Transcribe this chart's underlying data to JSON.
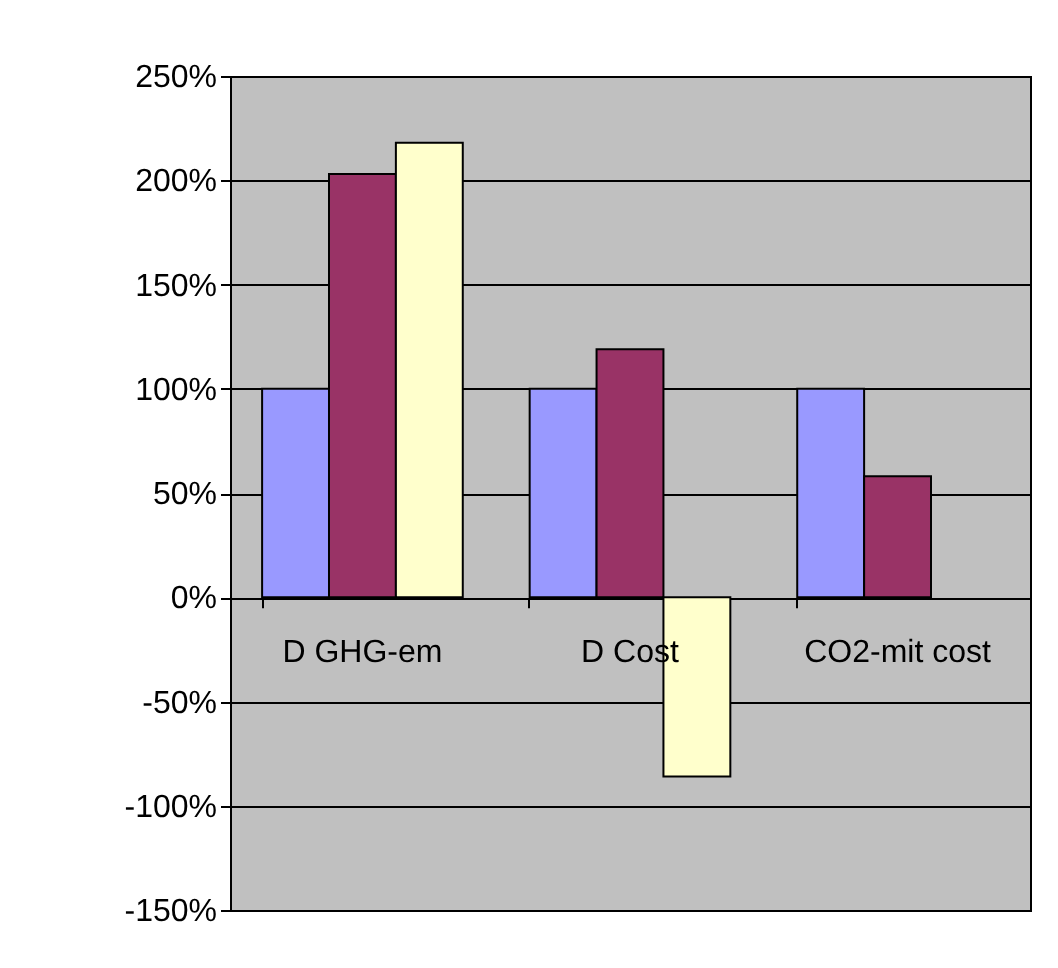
{
  "chart_data": {
    "type": "bar",
    "categories": [
      "D GHG-em",
      "D Cost",
      "CO2-mit cost"
    ],
    "series": [
      {
        "color": "#9999ff",
        "values": [
          100,
          100,
          100
        ]
      },
      {
        "color": "#993366",
        "values": [
          203,
          119,
          58
        ]
      },
      {
        "color": "#ffffcc",
        "values": [
          218,
          -86,
          null
        ]
      }
    ],
    "ylim": [
      -150,
      250
    ],
    "yticks": [
      {
        "value": -150,
        "label": "-150%"
      },
      {
        "value": -100,
        "label": "-100%"
      },
      {
        "value": -50,
        "label": "-50%"
      },
      {
        "value": 0,
        "label": "0%"
      },
      {
        "value": 50,
        "label": "50%"
      },
      {
        "value": 100,
        "label": "100%"
      },
      {
        "value": 150,
        "label": "150%"
      },
      {
        "value": 200,
        "label": "200%"
      },
      {
        "value": 250,
        "label": "250%"
      }
    ],
    "grid": "y",
    "legend": false
  }
}
